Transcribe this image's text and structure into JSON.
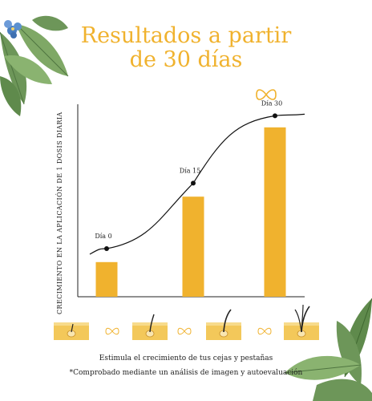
{
  "header": {
    "title_line1": "Resultados a partir",
    "title_line2": "de 30 días"
  },
  "chart_data": {
    "type": "bar",
    "categories": [
      "Día 0",
      "Día 15",
      "Día 30"
    ],
    "values": [
      18,
      52,
      88
    ],
    "ylim": [
      0,
      100
    ],
    "xlabel": "",
    "ylabel": "CRECIMIENTO EN LA APLICACIÓN DE 1 DOSIS DIARIA",
    "grid": false,
    "trend_line": [
      {
        "label": "Día 0",
        "value": 25
      },
      {
        "label": "Día 15",
        "value": 59
      },
      {
        "label": "Día 30",
        "value": 94
      }
    ],
    "bar_color": "#f0b22e",
    "line_color": "#111111"
  },
  "footer": {
    "caption1": "Estimula el crecimiento de tus cejas y pestañas",
    "caption2": "*Comprobado mediante un análisis de imagen y autoevaluación"
  },
  "icons": [
    "leaf-decoration-icon",
    "blue-flower-icon",
    "infinity-icon",
    "hair-follicle-icon"
  ],
  "colors": {
    "accent": "#f0b22e",
    "leaf": "#5f8a4c",
    "flower": "#4a7fc0"
  }
}
